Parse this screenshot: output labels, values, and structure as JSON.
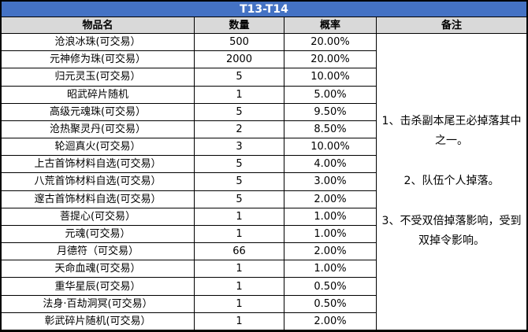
{
  "title": "T13-T14",
  "colors": {
    "title_bg": "#4472C4",
    "title_text": "#FFFFFF",
    "header_bg": "#D9D9D9",
    "border": "#000000",
    "cell_bg": "#FFFFFF"
  },
  "columns": [
    "物品名",
    "数量",
    "概率",
    "备注"
  ],
  "rows": [
    {
      "name": "沧浪冰珠(可交易）",
      "qty": "500",
      "prob": "20.00%"
    },
    {
      "name": "元神修为珠(可交易）",
      "qty": "2000",
      "prob": "20.00%"
    },
    {
      "name": "归元灵玉(可交易）",
      "qty": "5",
      "prob": "10.00%"
    },
    {
      "name": "昭武碎片随机",
      "qty": "1",
      "prob": "5.00%"
    },
    {
      "name": "高级元魂珠(可交易）",
      "qty": "5",
      "prob": "9.50%"
    },
    {
      "name": "沧热聚灵丹(可交易）",
      "qty": "2",
      "prob": "8.50%"
    },
    {
      "name": "轮迴真火(可交易）",
      "qty": "3",
      "prob": "10.00%"
    },
    {
      "name": "上古首饰材料自选(可交易）",
      "qty": "5",
      "prob": "4.00%"
    },
    {
      "name": "八荒首饰材料自选(可交易）",
      "qty": "5",
      "prob": "3.00%"
    },
    {
      "name": "邃古首饰材料自选(可交易）",
      "qty": "5",
      "prob": "2.00%"
    },
    {
      "name": "菩提心(可交易）",
      "qty": "1",
      "prob": "1.00%"
    },
    {
      "name": "元魂(可交易）",
      "qty": "1",
      "prob": "1.00%"
    },
    {
      "name": "月德符（可交易）",
      "qty": "66",
      "prob": "2.00%"
    },
    {
      "name": "天命血魂(可交易）",
      "qty": "1",
      "prob": "1.00%"
    },
    {
      "name": "重华星辰(可交易）",
      "qty": "1",
      "prob": "0.50%"
    },
    {
      "name": "法身·百劫洞冥(可交易）",
      "qty": "1",
      "prob": "0.50%"
    },
    {
      "name": "彰武碎片随机(可交易）",
      "qty": "1",
      "prob": "2.00%"
    }
  ],
  "notes": [
    "1、击杀副本尾王必掉落其中之一。",
    "2、队伍个人掉落。",
    "3、不受双倍掉落影响，受到双掉令影响。"
  ]
}
